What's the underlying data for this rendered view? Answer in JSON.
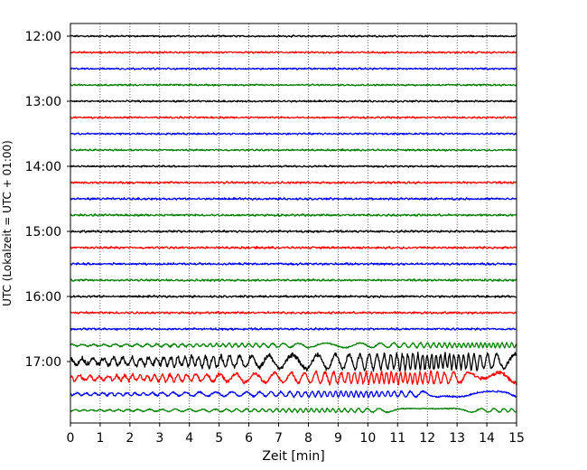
{
  "chart_data": {
    "type": "line",
    "title": "",
    "xlabel": "Zeit  [min]",
    "ylabel": "UTC (Lokalzeit = UTC + 01:00)",
    "xlim": [
      0,
      15
    ],
    "x_ticks": [
      "0",
      "1",
      "2",
      "3",
      "4",
      "5",
      "6",
      "7",
      "8",
      "9",
      "10",
      "11",
      "12",
      "13",
      "14",
      "15"
    ],
    "y_ticks": [
      "12:00",
      "13:00",
      "14:00",
      "15:00",
      "16:00",
      "17:00"
    ],
    "grid": "vertical dotted",
    "trace_interval_min": 15,
    "start_time": "12:00",
    "trace_count": 24,
    "colors": [
      "#000000",
      "#ff0000",
      "#0000ff",
      "#008000"
    ],
    "traces": [
      {
        "time": "12:00",
        "color": "#000000",
        "amplitude": 0.5
      },
      {
        "time": "12:15",
        "color": "#ff0000",
        "amplitude": 0.5
      },
      {
        "time": "12:30",
        "color": "#0000ff",
        "amplitude": 0.5
      },
      {
        "time": "12:45",
        "color": "#008000",
        "amplitude": 0.5
      },
      {
        "time": "13:00",
        "color": "#000000",
        "amplitude": 0.5
      },
      {
        "time": "13:15",
        "color": "#ff0000",
        "amplitude": 0.5
      },
      {
        "time": "13:30",
        "color": "#0000ff",
        "amplitude": 0.5
      },
      {
        "time": "13:45",
        "color": "#008000",
        "amplitude": 0.5
      },
      {
        "time": "14:00",
        "color": "#000000",
        "amplitude": 0.5
      },
      {
        "time": "14:15",
        "color": "#ff0000",
        "amplitude": 0.6
      },
      {
        "time": "14:30",
        "color": "#0000ff",
        "amplitude": 0.6
      },
      {
        "time": "14:45",
        "color": "#008000",
        "amplitude": 0.6
      },
      {
        "time": "15:00",
        "color": "#000000",
        "amplitude": 0.6
      },
      {
        "time": "15:15",
        "color": "#ff0000",
        "amplitude": 0.6
      },
      {
        "time": "15:30",
        "color": "#0000ff",
        "amplitude": 0.6
      },
      {
        "time": "15:45",
        "color": "#008000",
        "amplitude": 0.6
      },
      {
        "time": "16:00",
        "color": "#000000",
        "amplitude": 0.6
      },
      {
        "time": "16:15",
        "color": "#ff0000",
        "amplitude": 0.6
      },
      {
        "time": "16:30",
        "color": "#0000ff",
        "amplitude": 0.6
      },
      {
        "time": "16:45",
        "color": "#008000",
        "amplitude": 2.5
      },
      {
        "time": "17:00",
        "color": "#000000",
        "amplitude": 8
      },
      {
        "time": "17:15",
        "color": "#ff0000",
        "amplitude": 6
      },
      {
        "time": "17:30",
        "color": "#0000ff",
        "amplitude": 3
      },
      {
        "time": "17:45",
        "color": "#008000",
        "amplitude": 2
      }
    ]
  }
}
